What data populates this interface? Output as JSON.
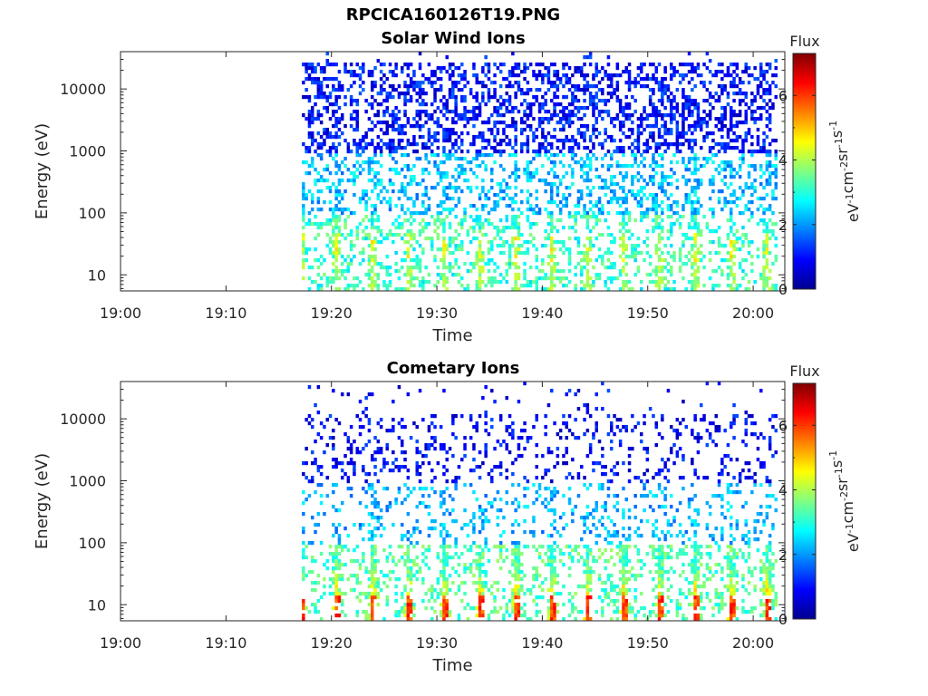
{
  "figure": {
    "title": "RPCICA160126T19.PNG"
  },
  "colormap": {
    "stops": [
      "#00008f",
      "#0000ff",
      "#0080ff",
      "#00ffff",
      "#80ff80",
      "#ffff00",
      "#ff8000",
      "#ff0000",
      "#800000"
    ]
  },
  "chart_data": [
    {
      "type": "heatmap",
      "title": "Solar Wind Ions",
      "xlabel": "Time",
      "ylabel": "Energy (eV)",
      "yscale": "log",
      "xlim": [
        "19:00",
        "20:03"
      ],
      "ylim": [
        5.5,
        40000
      ],
      "xticks": [
        "19:00",
        "19:10",
        "19:20",
        "19:30",
        "19:40",
        "19:50",
        "20:00"
      ],
      "yticks": [
        10,
        100,
        1000,
        10000
      ],
      "ytick_labels": [
        "10",
        "100",
        "1000",
        "10000"
      ],
      "data_start": "19:17",
      "data_end": "20:02",
      "colorbar": {
        "label": "Flux",
        "units": "eV-1cm-2sr-1s-1",
        "range": [
          0,
          7.3
        ],
        "ticks": [
          0,
          2,
          4,
          6
        ],
        "tick_labels": [
          "0",
          "2",
          "4",
          "6"
        ]
      },
      "population": "solar_wind"
    },
    {
      "type": "heatmap",
      "title": "Cometary Ions",
      "xlabel": "Time",
      "ylabel": "Energy (eV)",
      "yscale": "log",
      "xlim": [
        "19:00",
        "20:03"
      ],
      "ylim": [
        5.5,
        40000
      ],
      "xticks": [
        "19:00",
        "19:10",
        "19:20",
        "19:30",
        "19:40",
        "19:50",
        "20:00"
      ],
      "yticks": [
        10,
        100,
        1000,
        10000
      ],
      "ytick_labels": [
        "10",
        "100",
        "1000",
        "10000"
      ],
      "data_start": "19:17",
      "data_end": "20:02",
      "colorbar": {
        "label": "Flux",
        "units": "eV-1cm-2sr-1s-1",
        "range": [
          0,
          7.3
        ],
        "ticks": [
          0,
          2,
          4,
          6
        ],
        "tick_labels": [
          "0",
          "2",
          "4",
          "6"
        ]
      },
      "population": "cometary"
    }
  ]
}
